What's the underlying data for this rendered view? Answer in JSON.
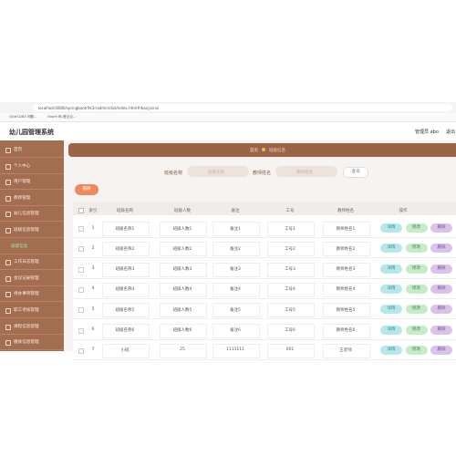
{
  "browser": {
    "url": "localhost:8080/springbootr9k3r/admin/dist/index.html#/banjixinxi",
    "bookmarks": [
      "QQ#CDB3 问题...",
      "Oauth 码-登记点..."
    ]
  },
  "header": {
    "title": "幼儿园管理系统",
    "user": "管理员 abo",
    "logout": "退出"
  },
  "sidebar": {
    "items": [
      "首页",
      "个人中心",
      "用户管理",
      "教师管理",
      "幼儿信息管理",
      "班级信息管理",
      "班级信息",
      "工作日志管理",
      "会议记录管理",
      "待办事项管理",
      "职工考核管理",
      "课程信息管理",
      "膳食信息管理"
    ],
    "active": 6
  },
  "breadcrumb": [
    "首页",
    "班级信息"
  ],
  "search": {
    "fields": [
      {
        "label": "班级名称",
        "placeholder": "班级名称"
      },
      {
        "label": "教师姓名",
        "placeholder": "教师姓名"
      }
    ],
    "button": "查询"
  },
  "delete_button": "删除",
  "table": {
    "columns": [
      "索引",
      "班级名称",
      "班级人数",
      "备注",
      "工号",
      "教师姓名",
      "操作"
    ],
    "actions": [
      "详情",
      "修改",
      "删除"
    ],
    "rows": [
      [
        "1",
        "班级名称1",
        "班级人数1",
        "备注1",
        "工号1",
        "教师姓名1"
      ],
      [
        "2",
        "班级名称2",
        "班级人数2",
        "备注2",
        "工号2",
        "教师姓名2"
      ],
      [
        "3",
        "班级名称3",
        "班级人数3",
        "备注3",
        "工号3",
        "教师姓名3"
      ],
      [
        "4",
        "班级名称4",
        "班级人数4",
        "备注4",
        "工号4",
        "教师姓名4"
      ],
      [
        "5",
        "班级名称5",
        "班级人数5",
        "备注5",
        "工号5",
        "教师姓名5"
      ],
      [
        "6",
        "班级名称6",
        "班级人数6",
        "备注6",
        "工号6",
        "教师姓名6"
      ],
      [
        "7",
        "小班",
        "25",
        "1111111",
        "001",
        "王老师"
      ]
    ]
  }
}
